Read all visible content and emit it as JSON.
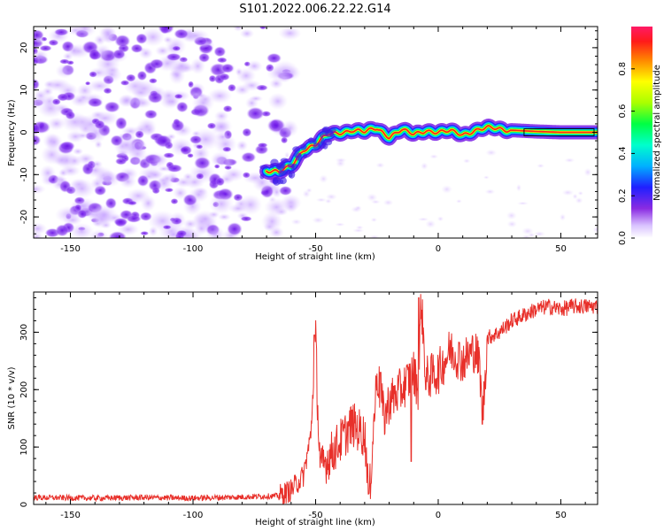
{
  "title": "S101.2022.006.22.22.G14",
  "colors": {
    "snr_line": "#e8302a",
    "axis": "#000000"
  },
  "chart_data": [
    {
      "type": "heatmap",
      "name": "spectrogram",
      "xlabel": "Height of straight line (km)",
      "ylabel": "Frequency (Hz)",
      "xlim": [
        -165,
        65
      ],
      "ylim": [
        -25,
        25
      ],
      "xticks": [
        -150,
        -100,
        -50,
        0,
        50
      ],
      "xtick_labels": [
        "-150",
        "-100",
        "-50",
        "0",
        "50"
      ],
      "yticks": [
        -20,
        -10,
        0,
        10,
        20
      ],
      "ytick_labels": [
        "-20",
        "-10",
        "0",
        "10",
        "20"
      ],
      "ridge": {
        "x": [
          -70,
          -65,
          -60,
          -55,
          -50,
          -45,
          -40,
          -35,
          -30,
          -25,
          -20,
          -15,
          -10,
          -5,
          0,
          5,
          10,
          15,
          20,
          30,
          40,
          50,
          65
        ],
        "y": [
          -9,
          -9.5,
          -8,
          -4,
          -3,
          -0.5,
          0,
          0.5,
          0,
          1,
          -1,
          0.5,
          -0.5,
          0.5,
          0,
          0.2,
          -0.5,
          0.5,
          1,
          0.5,
          0.2,
          0,
          0
        ]
      },
      "noise_region_x": [
        -165,
        -70
      ],
      "colorbar": {
        "label": "Normalized spectral amplitude",
        "range": [
          0,
          1
        ],
        "ticks": [
          0,
          0.2,
          0.4,
          0.6,
          0.8
        ],
        "tick_labels": [
          "0.0",
          "0.2",
          "0.4",
          "0.6",
          "0.8"
        ]
      }
    },
    {
      "type": "line",
      "name": "snr",
      "xlabel": "Height of straight line (km)",
      "ylabel": "SNR (10 * v/v)",
      "xlim": [
        -165,
        65
      ],
      "ylim": [
        0,
        370
      ],
      "xticks": [
        -150,
        -100,
        -50,
        0,
        50
      ],
      "xtick_labels": [
        "-150",
        "-100",
        "-50",
        "0",
        "50"
      ],
      "yticks": [
        0,
        100,
        200,
        300
      ],
      "ytick_labels": [
        "0",
        "100",
        "200",
        "300"
      ],
      "series": [
        {
          "name": "SNR",
          "x": [
            -165,
            -140,
            -120,
            -100,
            -80,
            -65,
            -60,
            -55,
            -52,
            -50,
            -49,
            -48,
            -45,
            -40,
            -35,
            -30,
            -28,
            -25,
            -22,
            -20,
            -15,
            -10,
            -8,
            -7,
            -5,
            0,
            5,
            10,
            15,
            17,
            18,
            20,
            25,
            30,
            35,
            40,
            45,
            50,
            55,
            60,
            65
          ],
          "y": [
            12,
            11,
            12,
            11,
            13,
            15,
            25,
            50,
            120,
            290,
            150,
            60,
            80,
            110,
            140,
            120,
            20,
            230,
            150,
            180,
            200,
            230,
            200,
            360,
            220,
            230,
            270,
            250,
            270,
            240,
            140,
            290,
            300,
            320,
            330,
            340,
            345,
            340,
            345,
            345,
            345
          ],
          "spikes": [
            {
              "x": -50.5,
              "y": 295
            },
            {
              "x": -28.5,
              "y": 18
            },
            {
              "x": -23.5,
              "y": 230
            },
            {
              "x": -11,
              "y": 75
            },
            {
              "x": -8,
              "y": 360
            },
            {
              "x": -5,
              "y": 200
            },
            {
              "x": 18,
              "y": 140
            }
          ]
        }
      ]
    }
  ]
}
